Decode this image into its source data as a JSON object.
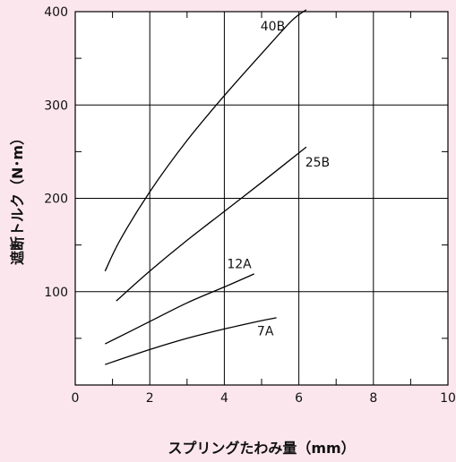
{
  "chart_data": {
    "type": "line",
    "xlabel": "スプリングたわみ量（mm）",
    "ylabel": "遮断トルク（N･m）",
    "xlim": [
      0,
      10
    ],
    "ylim": [
      0,
      400
    ],
    "xticks": [
      0,
      2,
      4,
      6,
      8,
      10
    ],
    "yticks": [
      100,
      200,
      300,
      400
    ],
    "x_minor_step": 1,
    "y_minor_step": 50,
    "grid": true,
    "legend": "inline labels",
    "series": [
      {
        "name": "40B",
        "x": [
          0.8,
          1.2,
          2.0,
          3.0,
          4.0,
          5.0,
          5.8,
          6.2
        ],
        "y": [
          122,
          155,
          207,
          262,
          310,
          355,
          390,
          402
        ]
      },
      {
        "name": "25B",
        "x": [
          1.1,
          2.0,
          3.0,
          4.0,
          5.0,
          6.2
        ],
        "y": [
          90,
          122,
          155,
          186,
          217,
          255
        ]
      },
      {
        "name": "12A",
        "x": [
          0.8,
          2.0,
          3.0,
          4.0,
          4.8
        ],
        "y": [
          44,
          68,
          88,
          105,
          119
        ]
      },
      {
        "name": "7A",
        "x": [
          0.8,
          2.0,
          3.0,
          4.0,
          5.0,
          5.4
        ],
        "y": [
          22,
          38,
          50,
          60,
          69,
          72
        ]
      }
    ],
    "series_label_positions": [
      {
        "name": "40B",
        "x": 5.3,
        "y": 380
      },
      {
        "name": "25B",
        "x": 6.5,
        "y": 234
      },
      {
        "name": "12A",
        "x": 4.4,
        "y": 125
      },
      {
        "name": "7A",
        "x": 5.1,
        "y": 53
      }
    ]
  }
}
